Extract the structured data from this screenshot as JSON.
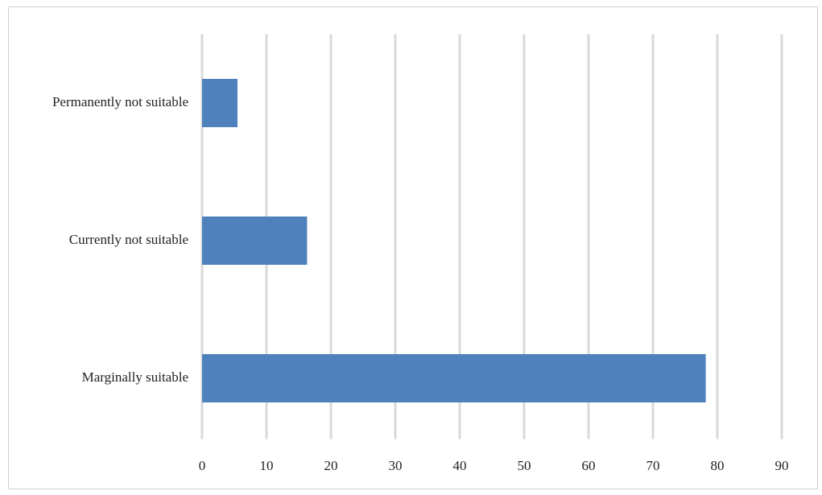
{
  "chart_data": {
    "type": "hbar",
    "categories": [
      "Permanently not suitable",
      "Currently not suitable",
      "Marginally suitable"
    ],
    "values": [
      5.5,
      16.3,
      78.2
    ],
    "color": "#4f81bd",
    "xlim": [
      0,
      90
    ],
    "xticks": [
      0,
      10,
      20,
      30,
      40,
      50,
      60,
      70,
      80,
      90
    ],
    "grid": true
  }
}
